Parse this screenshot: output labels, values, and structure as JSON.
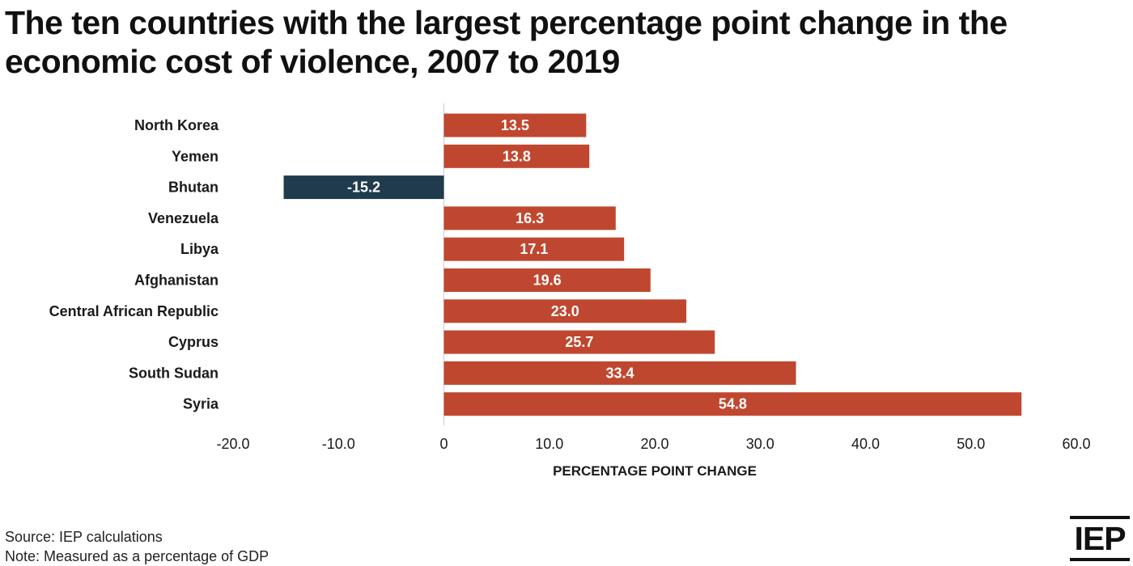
{
  "title": "The ten countries with the largest percentage point change in the economic cost of violence, 2007 to 2019",
  "source": "Source: IEP calculations",
  "note": "Note: Measured as a percentage of GDP",
  "logo": "IEP",
  "colors": {
    "positive": "#C0472F",
    "negative": "#1F3B4D",
    "axis": "#cccccc",
    "text": "#1a1a1a"
  },
  "chart_data": {
    "type": "bar",
    "orientation": "horizontal",
    "categories": [
      "North Korea",
      "Yemen",
      "Bhutan",
      "Venezuela",
      "Libya",
      "Afghanistan",
      "Central African Republic",
      "Cyprus",
      "South Sudan",
      "Syria"
    ],
    "values": [
      13.5,
      13.8,
      -15.2,
      16.3,
      17.1,
      19.6,
      23.0,
      25.7,
      33.4,
      54.8
    ],
    "data_labels": [
      "13.5",
      "13.8",
      "-15.2",
      "16.3",
      "17.1",
      "19.6",
      "23.0",
      "25.7",
      "33.4",
      "54.8"
    ],
    "xlabel": "PERCENTAGE POINT CHANGE",
    "ylabel": "",
    "xlim": [
      -20,
      60
    ],
    "xticks": [
      -20,
      -10,
      0,
      10,
      20,
      30,
      40,
      50,
      60
    ],
    "xtick_labels": [
      "-20.0",
      "-10.0",
      "0",
      "10.0",
      "20.0",
      "30.0",
      "40.0",
      "50.0",
      "60.0"
    ],
    "grid": false,
    "legend": "none"
  }
}
